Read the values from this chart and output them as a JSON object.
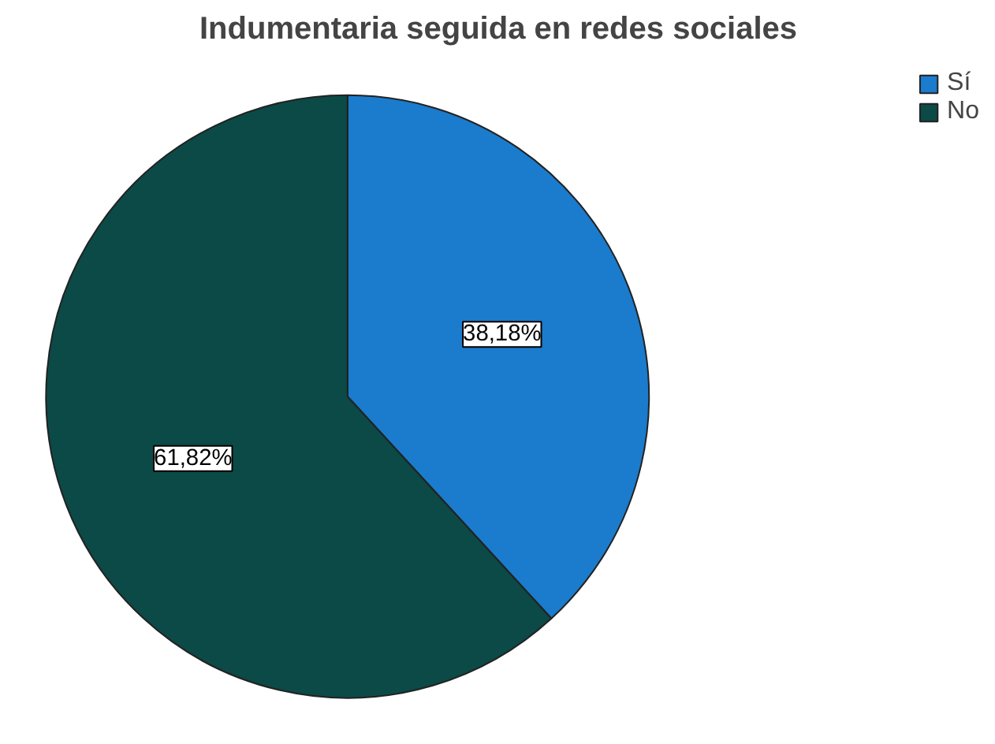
{
  "chart_data": {
    "type": "pie",
    "title": "Indumentaria seguida en redes sociales",
    "categories": [
      "Sí",
      "No"
    ],
    "values": [
      38.18,
      61.82
    ],
    "colors": [
      "#1b7bcc",
      "#0b4a46"
    ],
    "value_labels": [
      "38,18%",
      "61,82%"
    ],
    "legend": "top right"
  }
}
